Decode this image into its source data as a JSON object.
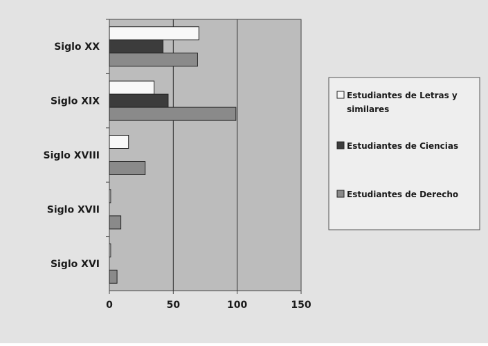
{
  "chart_data": {
    "type": "bar",
    "orientation": "horizontal",
    "categories": [
      "Siglo XX",
      "Siglo XIX",
      "Siglo XVIII",
      "Siglo XVII",
      "Siglo XVI"
    ],
    "series": [
      {
        "name": "Estudiantes de Letras y similares",
        "values": [
          70,
          35,
          15,
          1,
          1
        ]
      },
      {
        "name": "Estudiantes de Ciencias",
        "values": [
          42,
          46,
          0,
          0,
          0
        ]
      },
      {
        "name": "Estudiantes de Derecho",
        "values": [
          69,
          99,
          28,
          9,
          6
        ]
      }
    ],
    "xticks": [
      "0",
      "50",
      "100",
      "150"
    ],
    "xlim": [
      0,
      150
    ],
    "grid": true,
    "legend_position": "right",
    "colors": {
      "background": "#e3e3e3",
      "plot_area": "#bcbcbc",
      "series": [
        "#f8f8f8",
        "#3c3c3c",
        "#8a8a8a"
      ],
      "bar_stroke": "#222222",
      "gridline": "#2a2a2a",
      "legend_bg": "#eeeeee",
      "legend_border": "#555555",
      "text": "#1a1a1a"
    }
  }
}
